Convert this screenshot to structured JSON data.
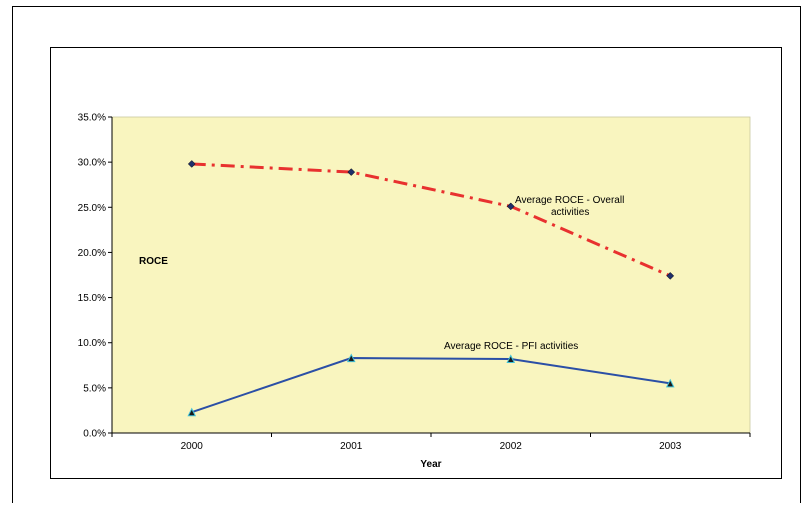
{
  "chart_data": {
    "type": "line",
    "categories": [
      "2000",
      "2001",
      "2002",
      "2003"
    ],
    "xlabel": "Year",
    "ylabel": "ROCE",
    "ylim": [
      0,
      35
    ],
    "yticks": [
      "0.0%",
      "5.0%",
      "10.0%",
      "15.0%",
      "20.0%",
      "25.0%",
      "30.0%",
      "35.0%"
    ],
    "plot_background": "#f9f5bf",
    "series": [
      {
        "name": "Average ROCE - Overall activities",
        "name_lines": [
          "Average ROCE - Overall",
          "activities"
        ],
        "values": [
          29.8,
          28.9,
          25.1,
          17.4
        ],
        "color": "#e8312f",
        "style": "dash-dot",
        "marker": "diamond"
      },
      {
        "name": "Average ROCE - PFI activities",
        "name_lines": [
          "Average ROCE - PFI activities"
        ],
        "values": [
          2.3,
          8.3,
          8.2,
          5.5
        ],
        "color": "#2b4fa6",
        "style": "solid",
        "marker": "triangle"
      }
    ]
  }
}
